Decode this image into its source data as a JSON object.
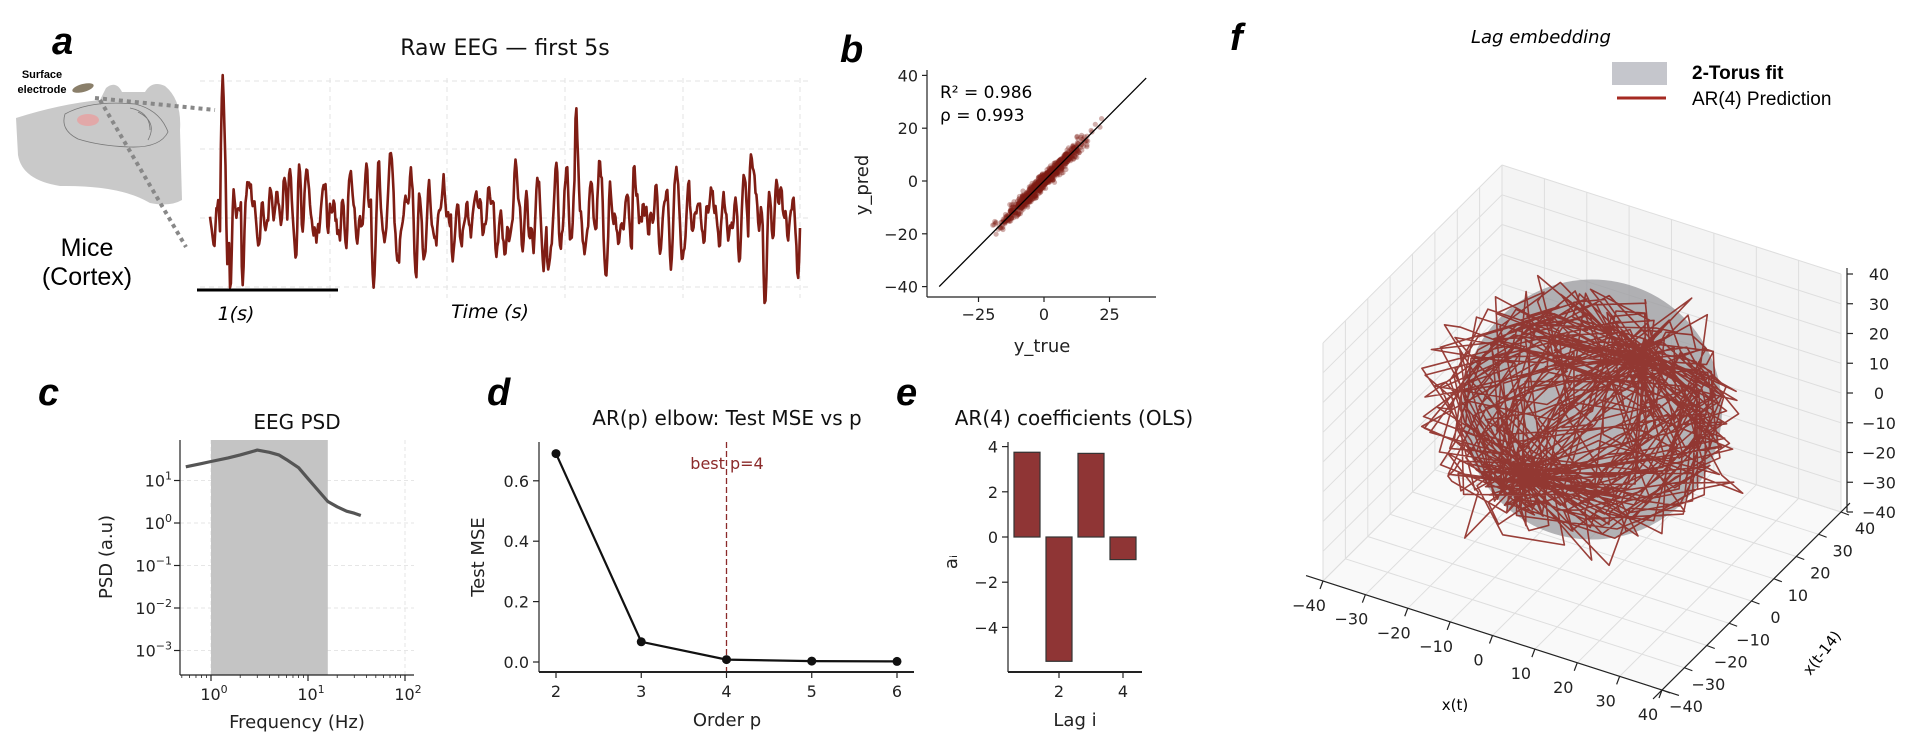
{
  "panel_labels": {
    "a": "a",
    "b": "b",
    "c": "c",
    "d": "d",
    "e": "e",
    "f": "f"
  },
  "illustration": {
    "electrode_label_line1": "Surface",
    "electrode_label_line2": "electrode",
    "species": "Mice",
    "region": "(Cortex)"
  },
  "colors": {
    "trace": "#7f1d14",
    "bar": "#8f3535",
    "psd_band": "#c4c4c4",
    "psd_line": "#555555",
    "torus": "#9a9a9e",
    "best_line": "#8b2a2a"
  },
  "chart_data": [
    {
      "panel": "a",
      "type": "line",
      "title": "Raw EEG — first 5s",
      "xlabel": "Time (s)",
      "ylabel": "",
      "scale_bar_label": "1(s)",
      "grid": true,
      "duration_s": 5
    },
    {
      "panel": "b",
      "type": "scatter",
      "title": "",
      "xlabel": "y_true",
      "ylabel": "y_pred",
      "xticks": [
        "−25",
        "0",
        "25"
      ],
      "xtick_values": [
        -25,
        0,
        25
      ],
      "yticks": [
        "−40",
        "−20",
        "0",
        "20",
        "40"
      ],
      "ytick_values": [
        -40,
        -20,
        0,
        20,
        40
      ],
      "xlim": [
        -44,
        44
      ],
      "ylim": [
        -43,
        43
      ],
      "identity_line": true,
      "r2_label": "R² = 0.986",
      "rho_label": "ρ = 0.993",
      "r2": 0.986,
      "rho": 0.993
    },
    {
      "panel": "c",
      "type": "line",
      "title": "EEG PSD",
      "xlabel": "Frequency (Hz)",
      "ylabel": "PSD (a.u)",
      "xscale": "log",
      "yscale": "log",
      "tick_base": "10",
      "xtick_exponents": [
        "0",
        "1",
        "2"
      ],
      "ytick_exponents": [
        "1",
        "0",
        "-1",
        "-2",
        "-3"
      ],
      "xlim": [
        0.48,
        125
      ],
      "ylim": [
        0.0003,
        90
      ],
      "shaded_band_hz": [
        1,
        16
      ],
      "grid": true,
      "x": [
        0.55,
        0.8,
        1,
        1.5,
        2,
        2.5,
        3,
        4,
        5,
        6,
        8,
        10,
        13,
        16,
        20,
        25,
        30,
        35
      ],
      "y": [
        21,
        25,
        28,
        34,
        40,
        46,
        52,
        46,
        40,
        31,
        20,
        11,
        5.5,
        3.2,
        2.4,
        1.9,
        1.7,
        1.5
      ]
    },
    {
      "panel": "d",
      "type": "line",
      "title": "AR(p) elbow: Test MSE vs p",
      "xlabel": "Order p",
      "ylabel": "Test MSE",
      "categories": [
        2,
        3,
        4,
        5,
        6
      ],
      "xticks": [
        "2",
        "3",
        "4",
        "5",
        "6"
      ],
      "values": [
        0.69,
        0.067,
        0.008,
        0.003,
        0.002
      ],
      "yticks": [
        "0.0",
        "0.2",
        "0.4",
        "0.6"
      ],
      "ytick_values": [
        0,
        0.2,
        0.4,
        0.6
      ],
      "ylim": [
        -0.03,
        0.73
      ],
      "best_p": 4,
      "best_label": "best p=4"
    },
    {
      "panel": "e",
      "type": "bar",
      "title": "AR(4) coefficients (OLS)",
      "xlabel": "Lag i",
      "ylabel": "aᵢ",
      "categories": [
        1,
        2,
        3,
        4
      ],
      "values": [
        3.75,
        -5.5,
        3.7,
        -1.0
      ],
      "xticks": [
        "2",
        "4"
      ],
      "xtick_values": [
        2,
        4
      ],
      "yticks": [
        "4",
        "2",
        "0",
        "−2",
        "−4"
      ],
      "ytick_values": [
        4,
        2,
        0,
        -2,
        -4
      ]
    },
    {
      "panel": "f",
      "type": "line",
      "title": "Lag embedding",
      "xlabel": "x(t)",
      "ylabel": "x(t-14)",
      "zlabel": "",
      "ticks": [
        -40,
        -30,
        -20,
        -10,
        0,
        10,
        20,
        30,
        40
      ],
      "tick_labels": [
        "−40",
        "−30",
        "−20",
        "−10",
        "0",
        "10",
        "20",
        "30",
        "40"
      ],
      "xlim": [
        -40,
        40
      ],
      "ylim": [
        -40,
        40
      ],
      "zlim": [
        -40,
        40
      ],
      "legend": [
        {
          "label": "2-Torus fit",
          "kind": "patch"
        },
        {
          "label": "AR(4) Prediction",
          "kind": "line"
        }
      ],
      "legend_position": "top-right"
    }
  ]
}
